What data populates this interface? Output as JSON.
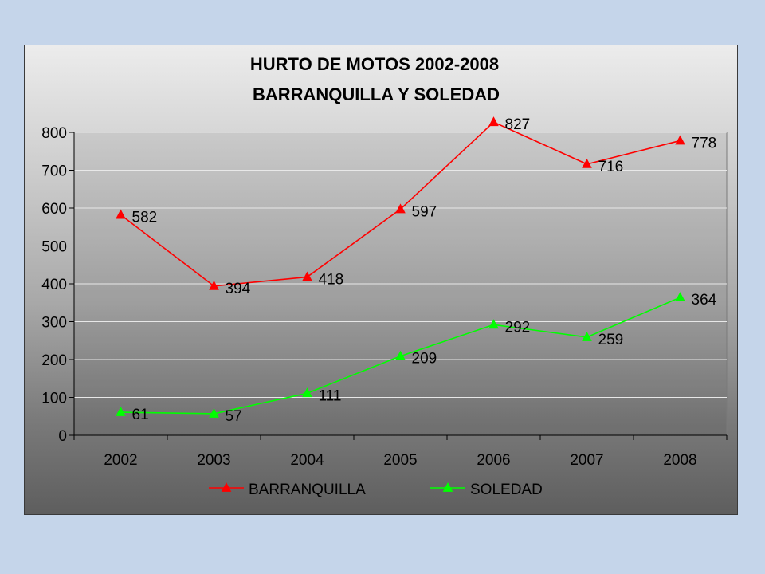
{
  "chart_data": {
    "type": "line",
    "title": "HURTO DE MOTOS 2002-2008",
    "subtitle": "BARRANQUILLA Y SOLEDAD",
    "categories": [
      "2002",
      "2003",
      "2004",
      "2005",
      "2006",
      "2007",
      "2008"
    ],
    "ylim": [
      0,
      800
    ],
    "yticks": [
      "0",
      "100",
      "200",
      "300",
      "400",
      "500",
      "600",
      "700",
      "800"
    ],
    "grid": true,
    "legend_position": "bottom",
    "series": [
      {
        "name": "BARRANQUILLA",
        "color": "#ff0000",
        "marker": "triangle",
        "values": [
          582,
          394,
          418,
          597,
          827,
          716,
          778
        ]
      },
      {
        "name": "SOLEDAD",
        "color": "#00ff00",
        "marker": "triangle",
        "values": [
          61,
          57,
          111,
          209,
          292,
          259,
          364
        ]
      }
    ]
  }
}
